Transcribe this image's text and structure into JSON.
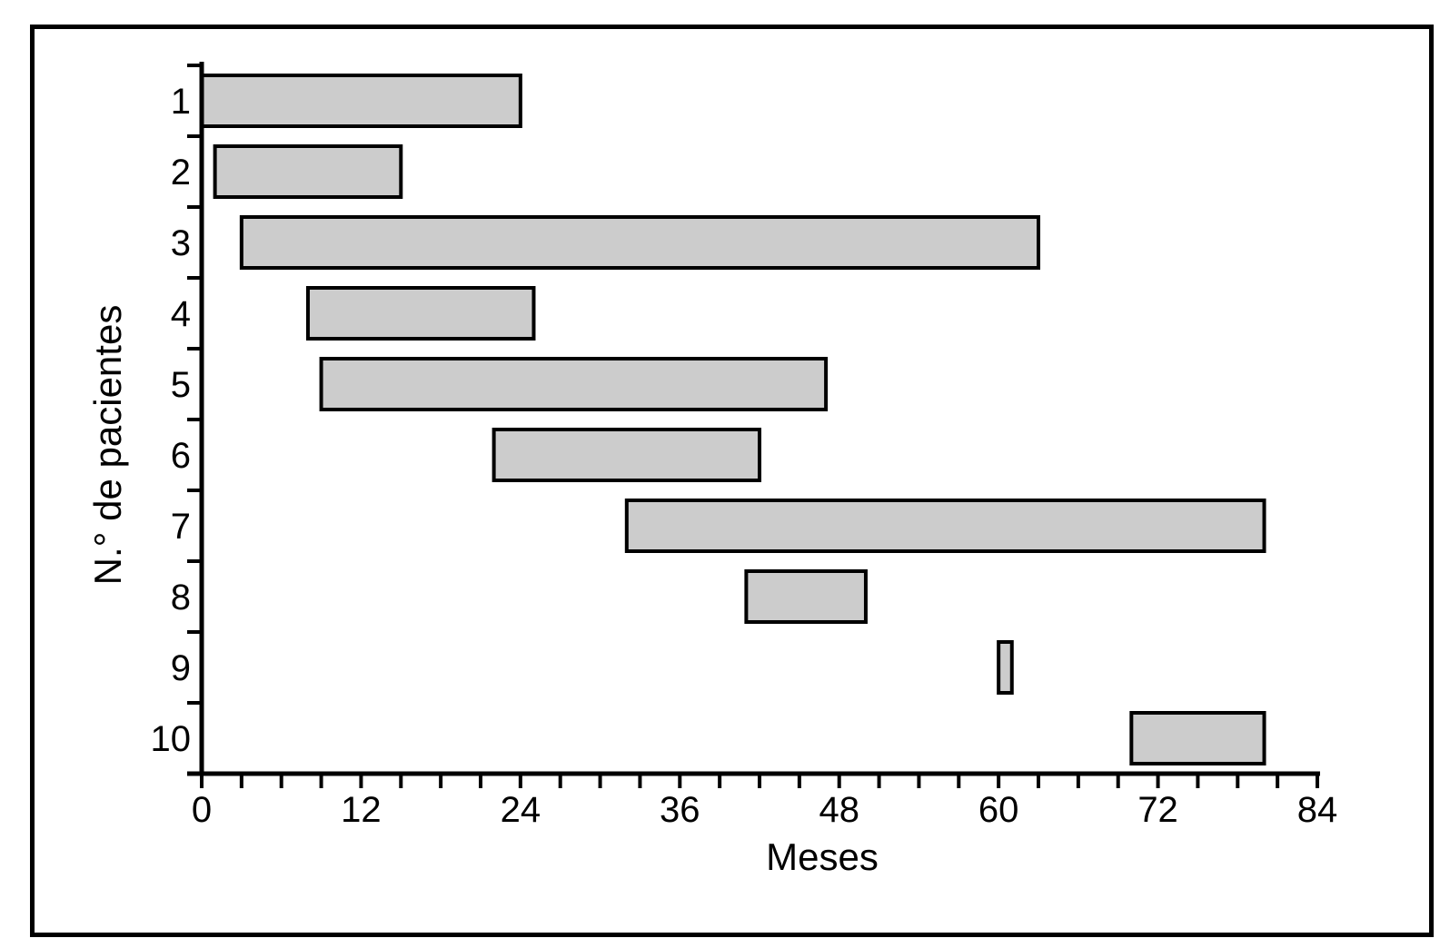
{
  "chart_data": {
    "type": "bar",
    "orientation": "horizontal-range",
    "title": "",
    "xlabel": "Meses",
    "ylabel": "N.° de pacientes",
    "xlim": [
      0,
      84
    ],
    "x_major_ticks": [
      0,
      12,
      24,
      36,
      48,
      60,
      72,
      84
    ],
    "x_minor_step": 3,
    "grid": false,
    "legend": "none",
    "categories": [
      "1",
      "2",
      "3",
      "4",
      "5",
      "6",
      "7",
      "8",
      "9",
      "10"
    ],
    "bars": [
      {
        "patient": "1",
        "start_month": 0,
        "end_month": 24
      },
      {
        "patient": "2",
        "start_month": 1,
        "end_month": 15
      },
      {
        "patient": "3",
        "start_month": 3,
        "end_month": 63
      },
      {
        "patient": "4",
        "start_month": 8,
        "end_month": 25
      },
      {
        "patient": "5",
        "start_month": 9,
        "end_month": 47
      },
      {
        "patient": "6",
        "start_month": 22,
        "end_month": 42
      },
      {
        "patient": "7",
        "start_month": 32,
        "end_month": 80
      },
      {
        "patient": "8",
        "start_month": 41,
        "end_month": 50
      },
      {
        "patient": "9",
        "start_month": 60,
        "end_month": 61
      },
      {
        "patient": "10",
        "start_month": 70,
        "end_month": 80
      }
    ],
    "colors": {
      "bar_fill": "#cccccc",
      "bar_border": "#000000",
      "axis": "#000000",
      "background": "#ffffff"
    }
  }
}
